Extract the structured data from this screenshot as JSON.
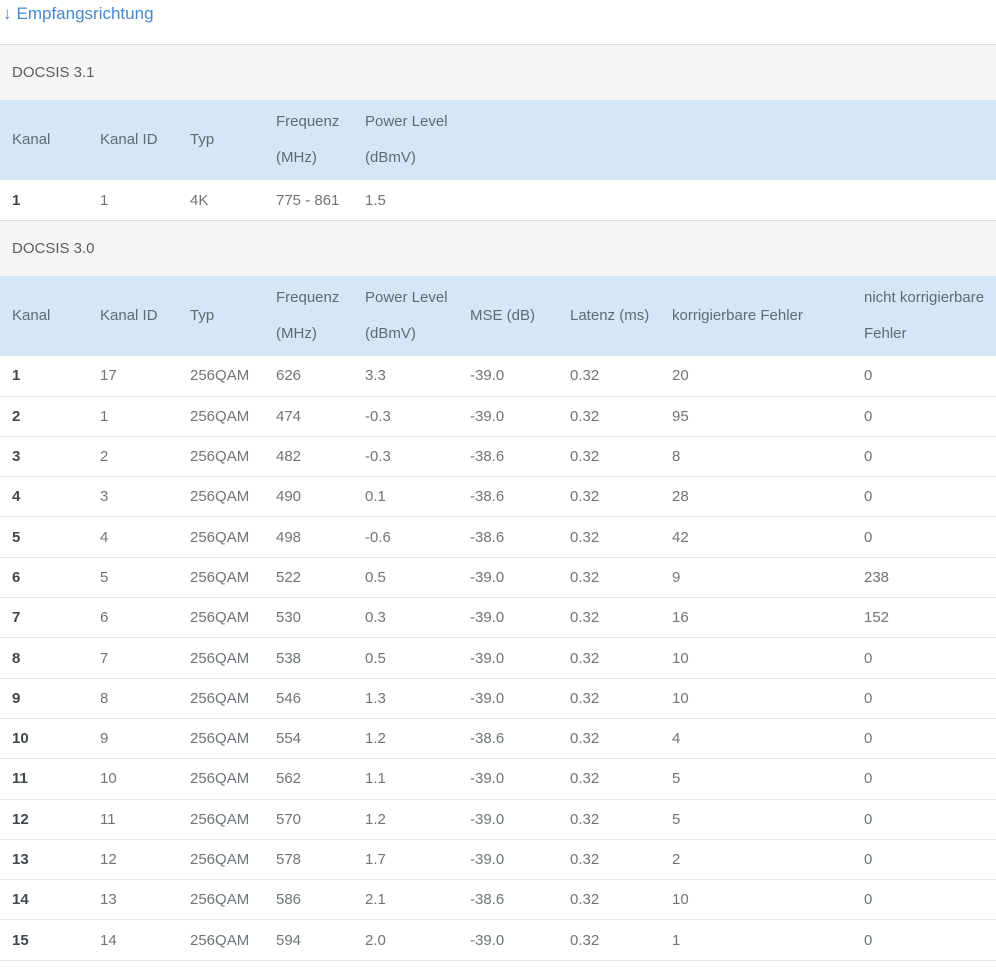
{
  "page": {
    "title": "Empfangsrichtung",
    "direction_icon": "↓"
  },
  "tables": {
    "docsis31": {
      "section_label": "DOCSIS 3.1",
      "headers": [
        [
          "Kanal"
        ],
        [
          "Kanal ID"
        ],
        [
          "Typ"
        ],
        [
          "Frequenz",
          "(MHz)"
        ],
        [
          "Power Level",
          "(dBmV)"
        ]
      ],
      "rows": [
        [
          "1",
          "1",
          "4K",
          "775 - 861",
          "1.5"
        ]
      ]
    },
    "docsis30": {
      "section_label": "DOCSIS 3.0",
      "headers": [
        [
          "Kanal"
        ],
        [
          "Kanal ID"
        ],
        [
          "Typ"
        ],
        [
          "Frequenz",
          "(MHz)"
        ],
        [
          "Power Level",
          "(dBmV)"
        ],
        [
          "MSE (dB)"
        ],
        [
          "Latenz (ms)"
        ],
        [
          "korrigierbare Fehler"
        ],
        [
          "nicht korrigierbare",
          "Fehler"
        ]
      ],
      "rows": [
        [
          "1",
          "17",
          "256QAM",
          "626",
          "3.3",
          "-39.0",
          "0.32",
          "20",
          "0"
        ],
        [
          "2",
          "1",
          "256QAM",
          "474",
          "-0.3",
          "-39.0",
          "0.32",
          "95",
          "0"
        ],
        [
          "3",
          "2",
          "256QAM",
          "482",
          "-0.3",
          "-38.6",
          "0.32",
          "8",
          "0"
        ],
        [
          "4",
          "3",
          "256QAM",
          "490",
          "0.1",
          "-38.6",
          "0.32",
          "28",
          "0"
        ],
        [
          "5",
          "4",
          "256QAM",
          "498",
          "-0.6",
          "-38.6",
          "0.32",
          "42",
          "0"
        ],
        [
          "6",
          "5",
          "256QAM",
          "522",
          "0.5",
          "-39.0",
          "0.32",
          "9",
          "238"
        ],
        [
          "7",
          "6",
          "256QAM",
          "530",
          "0.3",
          "-39.0",
          "0.32",
          "16",
          "152"
        ],
        [
          "8",
          "7",
          "256QAM",
          "538",
          "0.5",
          "-39.0",
          "0.32",
          "10",
          "0"
        ],
        [
          "9",
          "8",
          "256QAM",
          "546",
          "1.3",
          "-39.0",
          "0.32",
          "10",
          "0"
        ],
        [
          "10",
          "9",
          "256QAM",
          "554",
          "1.2",
          "-38.6",
          "0.32",
          "4",
          "0"
        ],
        [
          "11",
          "10",
          "256QAM",
          "562",
          "1.1",
          "-39.0",
          "0.32",
          "5",
          "0"
        ],
        [
          "12",
          "11",
          "256QAM",
          "570",
          "1.2",
          "-39.0",
          "0.32",
          "5",
          "0"
        ],
        [
          "13",
          "12",
          "256QAM",
          "578",
          "1.7",
          "-39.0",
          "0.32",
          "2",
          "0"
        ],
        [
          "14",
          "13",
          "256QAM",
          "586",
          "2.1",
          "-38.6",
          "0.32",
          "10",
          "0"
        ],
        [
          "15",
          "14",
          "256QAM",
          "594",
          "2.0",
          "-39.0",
          "0.32",
          "1",
          "0"
        ]
      ]
    }
  },
  "colors": {
    "title_blue": "#4789cf",
    "header_row_bg": "#d5e7f6",
    "section_bg": "#f6f5f4",
    "row_border": "#e9e9e9",
    "section_border": "#dcdcdc",
    "header_text": "#5d6b76",
    "cell_text": "#6e7479",
    "first_col_text": "#40474e"
  }
}
